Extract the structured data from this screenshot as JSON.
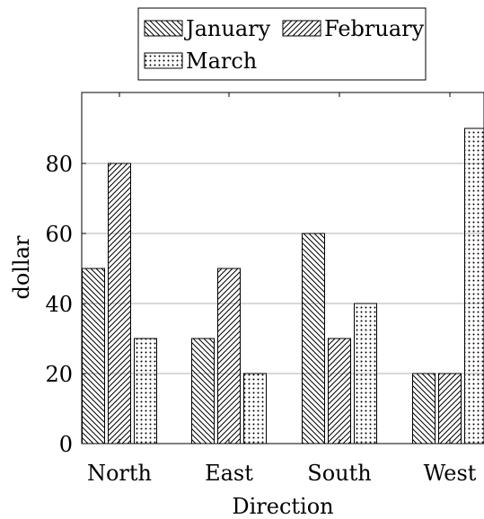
{
  "chart_data": {
    "type": "bar",
    "title": "",
    "xlabel": "Direction",
    "ylabel": "dollar",
    "categories": [
      "North",
      "East",
      "South",
      "West"
    ],
    "ylim": [
      0,
      98
    ],
    "yticks": [
      0,
      20,
      40,
      60,
      80
    ],
    "grid": "horizontal",
    "legend_position": "top",
    "series": [
      {
        "name": "January",
        "pattern": "north-west-lines",
        "values": [
          50,
          30,
          60,
          20
        ]
      },
      {
        "name": "February",
        "pattern": "north-east-lines",
        "values": [
          80,
          50,
          30,
          20
        ]
      },
      {
        "name": "March",
        "pattern": "dots",
        "values": [
          30,
          20,
          40,
          90
        ]
      }
    ]
  }
}
